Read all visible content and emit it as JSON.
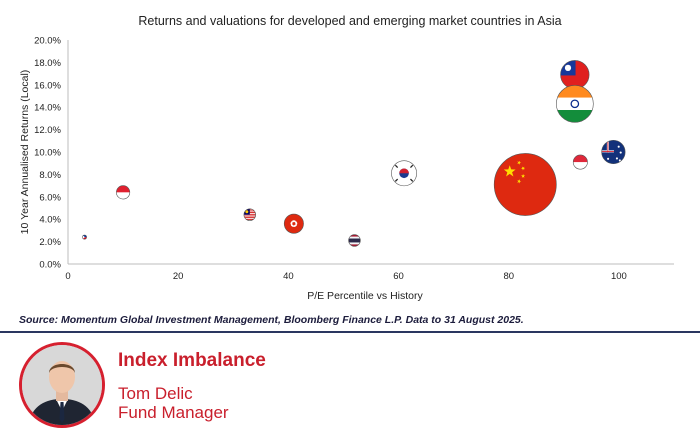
{
  "chart_data": {
    "type": "scatter",
    "title": "Returns and valuations for developed  and emerging market countries in Asia",
    "xlabel": "P/E Percentile vs History",
    "ylabel": "10 Year Annualised Returns (Local)",
    "xlim": [
      0,
      110
    ],
    "ylim": [
      0,
      20
    ],
    "x_ticks": [
      0,
      20,
      40,
      60,
      80,
      100
    ],
    "y_ticks": [
      0,
      2,
      4,
      6,
      8,
      10,
      12,
      14,
      16,
      18,
      20
    ],
    "y_tick_labels": [
      "0.0%",
      "2.0%",
      "4.0%",
      "6.0%",
      "8.0%",
      "10.0%",
      "12.0%",
      "14.0%",
      "16.0%",
      "18.0%",
      "20.0%"
    ],
    "grid": false,
    "points": [
      {
        "x": 3,
        "y": 2.4,
        "size": 0.5,
        "flag": "philippines-flag"
      },
      {
        "x": 10,
        "y": 6.4,
        "size": 1.6,
        "flag": "indonesia-flag"
      },
      {
        "x": 33,
        "y": 4.4,
        "size": 1.4,
        "flag": "malaysia-flag"
      },
      {
        "x": 41,
        "y": 3.6,
        "size": 2.3,
        "flag": "hong-kong-flag"
      },
      {
        "x": 52,
        "y": 2.1,
        "size": 1.4,
        "flag": "thailand-flag"
      },
      {
        "x": 61,
        "y": 8.1,
        "size": 3.0,
        "flag": "south-korea-flag"
      },
      {
        "x": 83,
        "y": 7.1,
        "size": 7.4,
        "flag": "china-flag"
      },
      {
        "x": 92,
        "y": 16.9,
        "size": 3.4,
        "flag": "taiwan-flag"
      },
      {
        "x": 92,
        "y": 14.3,
        "size": 4.4,
        "flag": "india-flag"
      },
      {
        "x": 93,
        "y": 9.1,
        "size": 1.7,
        "flag": "singapore-flag"
      },
      {
        "x": 99,
        "y": 10.0,
        "size": 2.8,
        "flag": "australia-flag"
      }
    ]
  },
  "source_text": "Source: Momentum Global Investment Management, Bloomberg Finance L.P. Data to 31 August 2025.",
  "footer": {
    "title": "Index Imbalance",
    "name": "Tom Delic",
    "role": "Fund Manager",
    "accent": "#c91f2c"
  }
}
